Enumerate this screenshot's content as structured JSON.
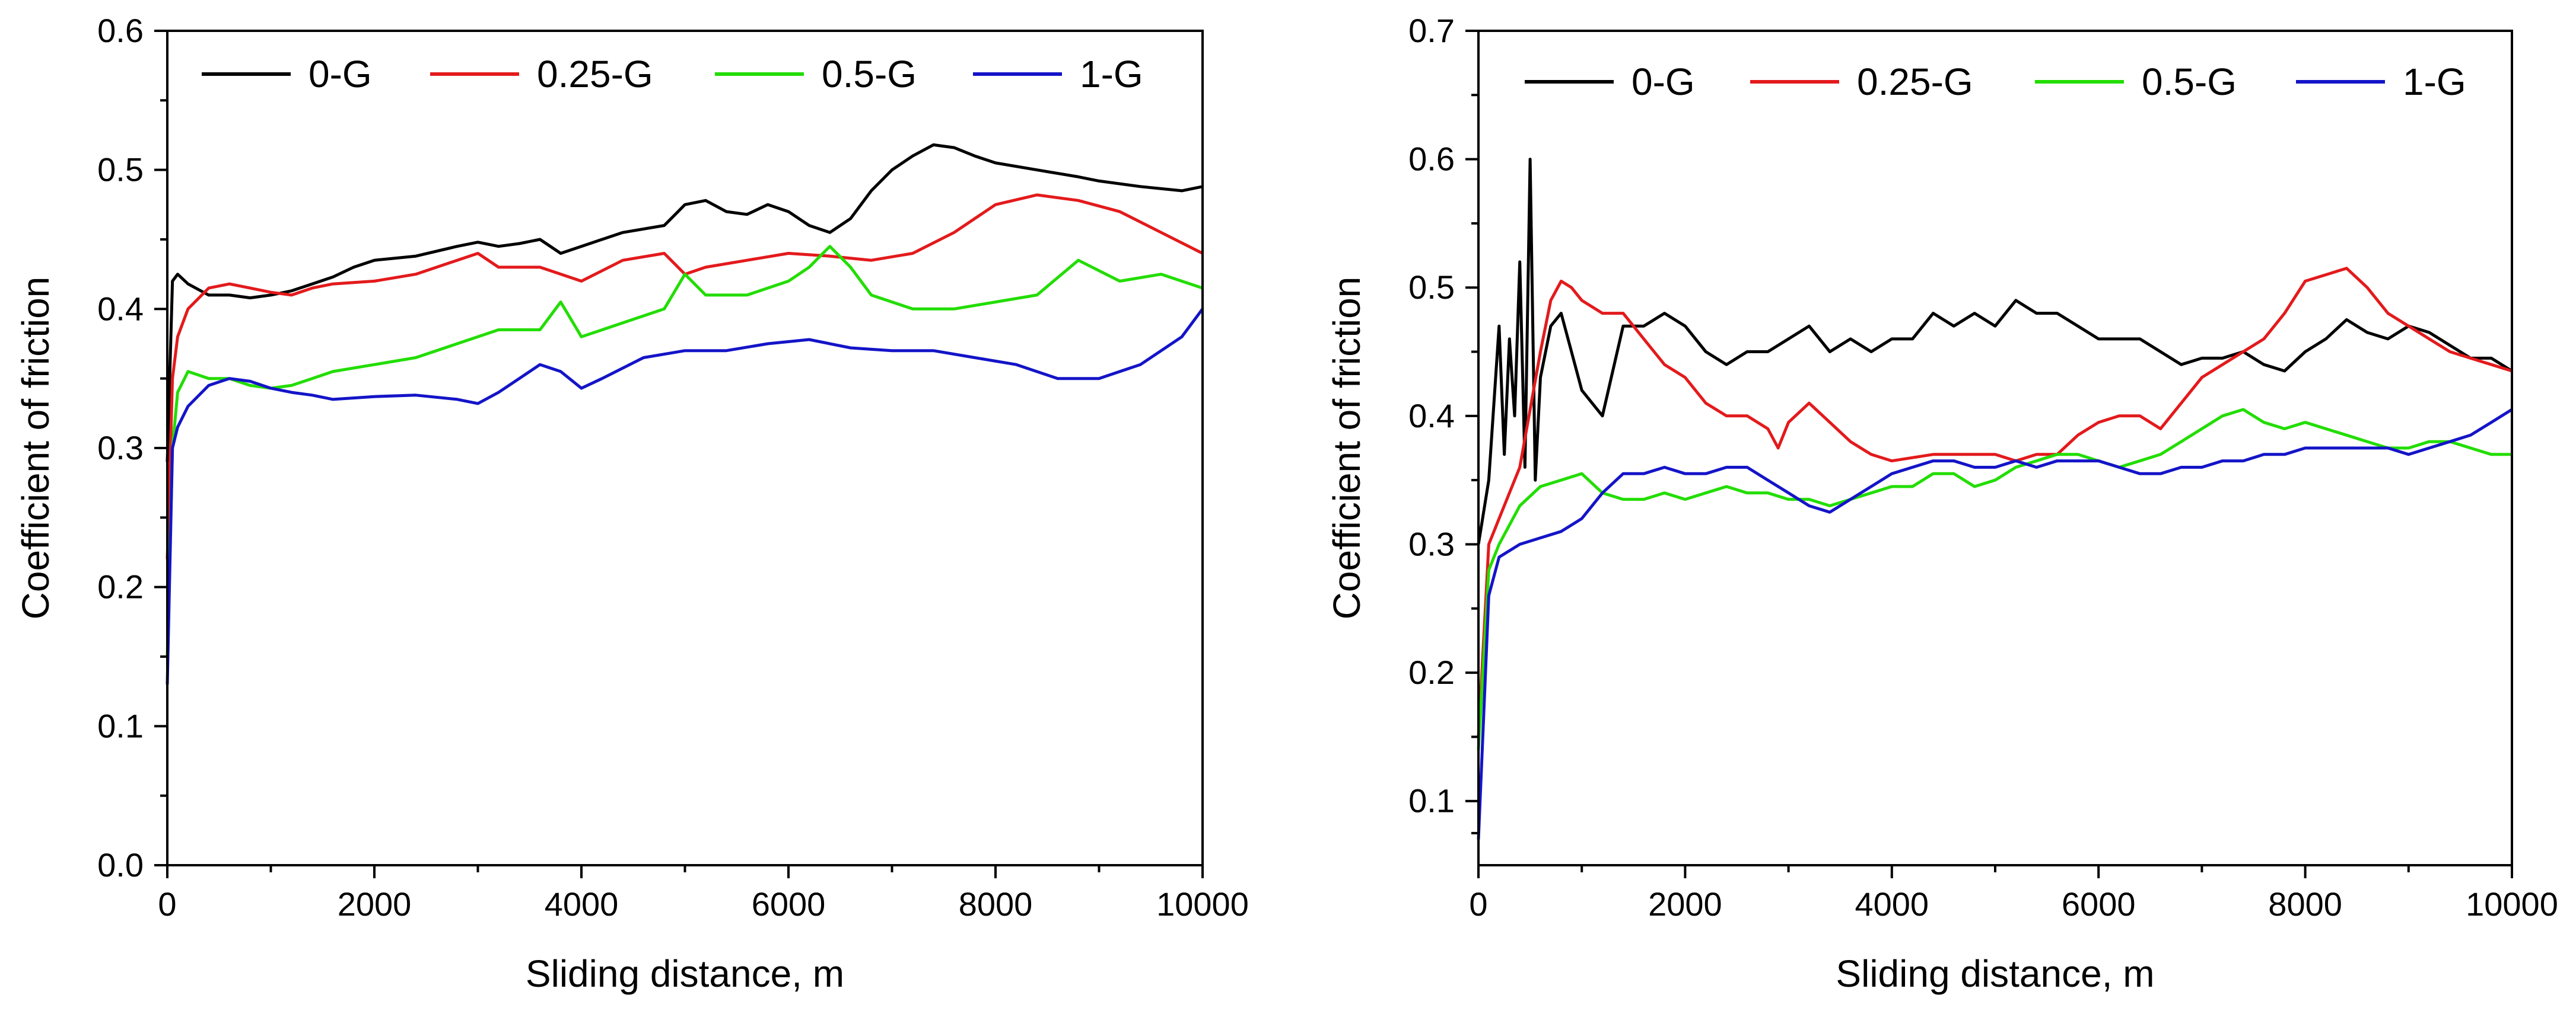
{
  "chart_data": [
    {
      "type": "line",
      "xlabel": "Sliding distance, m",
      "ylabel": "Coefficient of friction",
      "xlim": [
        0,
        10000
      ],
      "ylim": [
        0.0,
        0.6
      ],
      "xticks": [
        0,
        2000,
        4000,
        6000,
        8000,
        10000
      ],
      "xtick_labels": [
        "0",
        "2000",
        "4000",
        "6000",
        "8000",
        "10000"
      ],
      "yticks": [
        0.0,
        0.1,
        0.2,
        0.3,
        0.4,
        0.5,
        0.6
      ],
      "ytick_labels": [
        "0.0",
        "0.1",
        "0.2",
        "0.3",
        "0.4",
        "0.5",
        "0.6"
      ],
      "grid": false,
      "legend_position": "top",
      "series": [
        {
          "name": "0-G",
          "color": "#000000",
          "x": [
            0,
            50,
            100,
            200,
            400,
            600,
            800,
            1000,
            1200,
            1400,
            1600,
            1800,
            2000,
            2400,
            2800,
            3000,
            3200,
            3400,
            3600,
            3800,
            4000,
            4400,
            4800,
            5000,
            5200,
            5400,
            5600,
            5800,
            6000,
            6200,
            6400,
            6600,
            6800,
            7000,
            7200,
            7400,
            7600,
            7800,
            8000,
            8400,
            8800,
            9000,
            9400,
            9800,
            10000
          ],
          "y": [
            0.29,
            0.42,
            0.425,
            0.418,
            0.41,
            0.41,
            0.408,
            0.41,
            0.413,
            0.418,
            0.423,
            0.43,
            0.435,
            0.438,
            0.445,
            0.448,
            0.445,
            0.447,
            0.45,
            0.44,
            0.445,
            0.455,
            0.46,
            0.475,
            0.478,
            0.47,
            0.468,
            0.475,
            0.47,
            0.46,
            0.455,
            0.465,
            0.485,
            0.5,
            0.51,
            0.518,
            0.516,
            0.51,
            0.505,
            0.5,
            0.495,
            0.492,
            0.488,
            0.485,
            0.488
          ]
        },
        {
          "name": "0.25-G",
          "color": "#e31a1c",
          "x": [
            0,
            50,
            100,
            200,
            400,
            600,
            800,
            1000,
            1200,
            1400,
            1600,
            2000,
            2400,
            2800,
            3000,
            3200,
            3600,
            4000,
            4400,
            4800,
            5000,
            5200,
            5600,
            6000,
            6400,
            6800,
            7200,
            7600,
            8000,
            8400,
            8800,
            9200,
            9600,
            10000
          ],
          "y": [
            0.22,
            0.35,
            0.38,
            0.4,
            0.415,
            0.418,
            0.415,
            0.412,
            0.41,
            0.415,
            0.418,
            0.42,
            0.425,
            0.435,
            0.44,
            0.43,
            0.43,
            0.42,
            0.435,
            0.44,
            0.425,
            0.43,
            0.435,
            0.44,
            0.438,
            0.435,
            0.44,
            0.455,
            0.475,
            0.482,
            0.478,
            0.47,
            0.455,
            0.44
          ]
        },
        {
          "name": "0.5-G",
          "color": "#22dd00",
          "x": [
            0,
            50,
            100,
            200,
            400,
            600,
            800,
            1000,
            1200,
            1400,
            1600,
            2000,
            2400,
            2800,
            3000,
            3200,
            3600,
            3800,
            4000,
            4400,
            4800,
            5000,
            5200,
            5600,
            6000,
            6200,
            6400,
            6600,
            6800,
            7200,
            7600,
            8000,
            8400,
            8800,
            9200,
            9600,
            10000
          ],
          "y": [
            0.15,
            0.3,
            0.34,
            0.355,
            0.35,
            0.35,
            0.345,
            0.343,
            0.345,
            0.35,
            0.355,
            0.36,
            0.365,
            0.375,
            0.38,
            0.385,
            0.385,
            0.405,
            0.38,
            0.39,
            0.4,
            0.425,
            0.41,
            0.41,
            0.42,
            0.43,
            0.445,
            0.43,
            0.41,
            0.4,
            0.4,
            0.405,
            0.41,
            0.435,
            0.42,
            0.425,
            0.415
          ]
        },
        {
          "name": "1-G",
          "color": "#1414c8",
          "x": [
            0,
            50,
            100,
            200,
            400,
            600,
            800,
            1000,
            1200,
            1400,
            1600,
            2000,
            2400,
            2800,
            3000,
            3200,
            3400,
            3600,
            3800,
            4000,
            4200,
            4600,
            5000,
            5400,
            5800,
            6200,
            6600,
            7000,
            7400,
            7800,
            8200,
            8600,
            9000,
            9400,
            9800,
            10000
          ],
          "y": [
            0.13,
            0.3,
            0.315,
            0.33,
            0.345,
            0.35,
            0.348,
            0.343,
            0.34,
            0.338,
            0.335,
            0.337,
            0.338,
            0.335,
            0.332,
            0.34,
            0.35,
            0.36,
            0.355,
            0.343,
            0.35,
            0.365,
            0.37,
            0.37,
            0.375,
            0.378,
            0.372,
            0.37,
            0.37,
            0.365,
            0.36,
            0.35,
            0.35,
            0.36,
            0.38,
            0.4
          ]
        }
      ]
    },
    {
      "type": "line",
      "xlabel": "Sliding distance, m",
      "ylabel": "Coefficient of friction",
      "xlim": [
        0,
        10000
      ],
      "ylim": [
        0.05,
        0.7
      ],
      "xticks": [
        0,
        2000,
        4000,
        6000,
        8000,
        10000
      ],
      "xtick_labels": [
        "0",
        "2000",
        "4000",
        "6000",
        "8000",
        "10000"
      ],
      "yticks": [
        0.1,
        0.2,
        0.3,
        0.4,
        0.5,
        0.6,
        0.7
      ],
      "ytick_labels": [
        "0.1",
        "0.2",
        "0.3",
        "0.4",
        "0.5",
        "0.6",
        "0.7"
      ],
      "grid": false,
      "legend_position": "top",
      "series": [
        {
          "name": "0-G",
          "color": "#000000",
          "x": [
            0,
            100,
            200,
            250,
            300,
            350,
            400,
            450,
            500,
            550,
            600,
            700,
            800,
            900,
            1000,
            1100,
            1200,
            1400,
            1600,
            1800,
            2000,
            2200,
            2400,
            2600,
            2800,
            3000,
            3200,
            3400,
            3600,
            3800,
            4000,
            4200,
            4400,
            4600,
            4800,
            5000,
            5200,
            5400,
            5600,
            5800,
            6000,
            6200,
            6400,
            6600,
            6800,
            7000,
            7200,
            7400,
            7600,
            7800,
            8000,
            8200,
            8400,
            8600,
            8800,
            9000,
            9200,
            9400,
            9600,
            9800,
            10000
          ],
          "y": [
            0.3,
            0.35,
            0.47,
            0.37,
            0.46,
            0.4,
            0.52,
            0.36,
            0.6,
            0.35,
            0.43,
            0.47,
            0.48,
            0.45,
            0.42,
            0.41,
            0.4,
            0.47,
            0.47,
            0.48,
            0.47,
            0.45,
            0.44,
            0.45,
            0.45,
            0.46,
            0.47,
            0.45,
            0.46,
            0.45,
            0.46,
            0.46,
            0.48,
            0.47,
            0.48,
            0.47,
            0.49,
            0.48,
            0.48,
            0.47,
            0.46,
            0.46,
            0.46,
            0.45,
            0.44,
            0.445,
            0.445,
            0.45,
            0.44,
            0.435,
            0.45,
            0.46,
            0.475,
            0.465,
            0.46,
            0.47,
            0.465,
            0.455,
            0.445,
            0.445,
            0.435
          ]
        },
        {
          "name": "0.25-G",
          "color": "#e31a1c",
          "x": [
            0,
            100,
            200,
            400,
            600,
            700,
            800,
            900,
            1000,
            1200,
            1400,
            1600,
            1800,
            2000,
            2200,
            2400,
            2600,
            2800,
            2900,
            3000,
            3200,
            3400,
            3600,
            3800,
            4000,
            4400,
            4800,
            5000,
            5200,
            5400,
            5600,
            5800,
            6000,
            6200,
            6400,
            6600,
            6800,
            7000,
            7200,
            7400,
            7600,
            7800,
            8000,
            8200,
            8400,
            8600,
            8800,
            9000,
            9200,
            9400,
            9600,
            9800,
            10000
          ],
          "y": [
            0.15,
            0.3,
            0.32,
            0.36,
            0.45,
            0.49,
            0.505,
            0.5,
            0.49,
            0.48,
            0.48,
            0.46,
            0.44,
            0.43,
            0.41,
            0.4,
            0.4,
            0.39,
            0.375,
            0.395,
            0.41,
            0.395,
            0.38,
            0.37,
            0.365,
            0.37,
            0.37,
            0.37,
            0.365,
            0.37,
            0.37,
            0.385,
            0.395,
            0.4,
            0.4,
            0.39,
            0.41,
            0.43,
            0.44,
            0.45,
            0.46,
            0.48,
            0.505,
            0.51,
            0.515,
            0.5,
            0.48,
            0.47,
            0.46,
            0.45,
            0.445,
            0.44,
            0.435
          ]
        },
        {
          "name": "0.5-G",
          "color": "#22dd00",
          "x": [
            0,
            100,
            200,
            400,
            600,
            800,
            1000,
            1200,
            1400,
            1600,
            1800,
            2000,
            2200,
            2400,
            2600,
            2800,
            3000,
            3200,
            3400,
            3600,
            3800,
            4000,
            4200,
            4400,
            4600,
            4800,
            5000,
            5200,
            5400,
            5600,
            5800,
            6000,
            6200,
            6400,
            6600,
            6800,
            7000,
            7200,
            7400,
            7600,
            7800,
            8000,
            8200,
            8400,
            8600,
            8800,
            9000,
            9200,
            9400,
            9600,
            9800,
            10000
          ],
          "y": [
            0.14,
            0.28,
            0.3,
            0.33,
            0.345,
            0.35,
            0.355,
            0.34,
            0.335,
            0.335,
            0.34,
            0.335,
            0.34,
            0.345,
            0.34,
            0.34,
            0.335,
            0.335,
            0.33,
            0.335,
            0.34,
            0.345,
            0.345,
            0.355,
            0.355,
            0.345,
            0.35,
            0.36,
            0.365,
            0.37,
            0.37,
            0.365,
            0.36,
            0.365,
            0.37,
            0.38,
            0.39,
            0.4,
            0.405,
            0.395,
            0.39,
            0.395,
            0.39,
            0.385,
            0.38,
            0.375,
            0.375,
            0.38,
            0.38,
            0.375,
            0.37,
            0.37
          ]
        },
        {
          "name": "1-G",
          "color": "#1414c8",
          "x": [
            0,
            100,
            200,
            400,
            600,
            800,
            1000,
            1200,
            1400,
            1600,
            1800,
            2000,
            2200,
            2400,
            2600,
            2800,
            3000,
            3200,
            3400,
            3600,
            3800,
            4000,
            4200,
            4400,
            4600,
            4800,
            5000,
            5200,
            5400,
            5600,
            5800,
            6000,
            6200,
            6400,
            6600,
            6800,
            7000,
            7200,
            7400,
            7600,
            7800,
            8000,
            8200,
            8400,
            8600,
            8800,
            9000,
            9200,
            9400,
            9600,
            9800,
            10000
          ],
          "y": [
            0.07,
            0.26,
            0.29,
            0.3,
            0.305,
            0.31,
            0.32,
            0.34,
            0.355,
            0.355,
            0.36,
            0.355,
            0.355,
            0.36,
            0.36,
            0.35,
            0.34,
            0.33,
            0.325,
            0.335,
            0.345,
            0.355,
            0.36,
            0.365,
            0.365,
            0.36,
            0.36,
            0.365,
            0.36,
            0.365,
            0.365,
            0.365,
            0.36,
            0.355,
            0.355,
            0.36,
            0.36,
            0.365,
            0.365,
            0.37,
            0.37,
            0.375,
            0.375,
            0.375,
            0.375,
            0.375,
            0.37,
            0.375,
            0.38,
            0.385,
            0.395,
            0.405
          ]
        }
      ]
    }
  ]
}
